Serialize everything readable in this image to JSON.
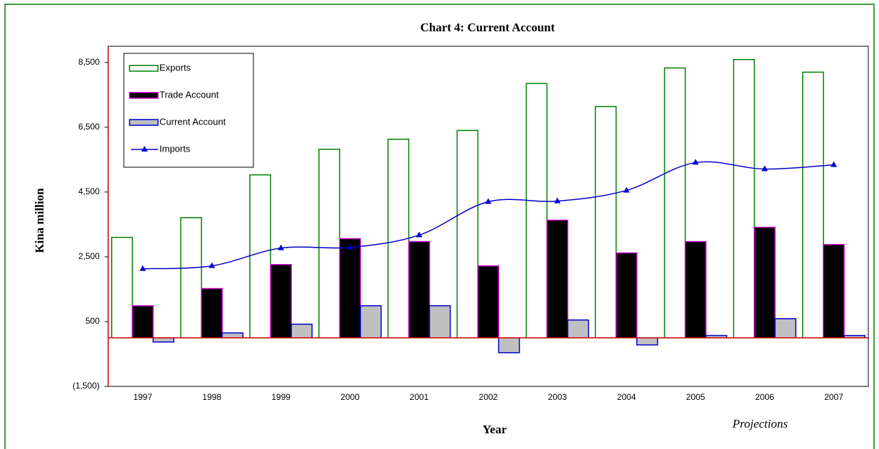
{
  "chart_data": {
    "type": "bar",
    "title": "Chart 4: Current Account",
    "xlabel": "Year",
    "ylabel": "Kina million",
    "annotation": "Projections",
    "categories": [
      "1997",
      "1998",
      "1999",
      "2000",
      "2001",
      "2002",
      "2003",
      "2004",
      "2005",
      "2006",
      "2007"
    ],
    "series": [
      {
        "name": "Exports",
        "color": "#ffffff",
        "stroke": "#008000",
        "values": [
          3100,
          3710,
          5030,
          5820,
          6130,
          6400,
          7850,
          7140,
          8330,
          8590,
          8200
        ]
      },
      {
        "name": "Trade Account",
        "color": "#000000",
        "stroke": "#cc00cc",
        "values": [
          990,
          1520,
          2260,
          3060,
          2970,
          2220,
          3630,
          2620,
          2970,
          3410,
          2880
        ]
      },
      {
        "name": "Current Account",
        "color": "#c0c0c0",
        "stroke": "#0000cc",
        "values": [
          -130,
          150,
          420,
          990,
          990,
          -460,
          550,
          -220,
          70,
          590,
          70
        ]
      },
      {
        "name": "Imports",
        "type": "line",
        "color": "#0000cc",
        "values": [
          2130,
          2220,
          2770,
          2790,
          3170,
          4200,
          4220,
          4550,
          5410,
          5210,
          5340
        ]
      }
    ],
    "ylim": [
      -1500,
      9000
    ],
    "yticks": [
      {
        "value": -1500,
        "label": "(1,500)"
      },
      500,
      {
        "value": 2500,
        "label": "2,500"
      },
      {
        "value": 4500,
        "label": "4,500"
      },
      {
        "value": 6500,
        "label": "6,500"
      },
      {
        "value": 8500,
        "label": "8,500"
      }
    ],
    "legend": "top-left"
  }
}
